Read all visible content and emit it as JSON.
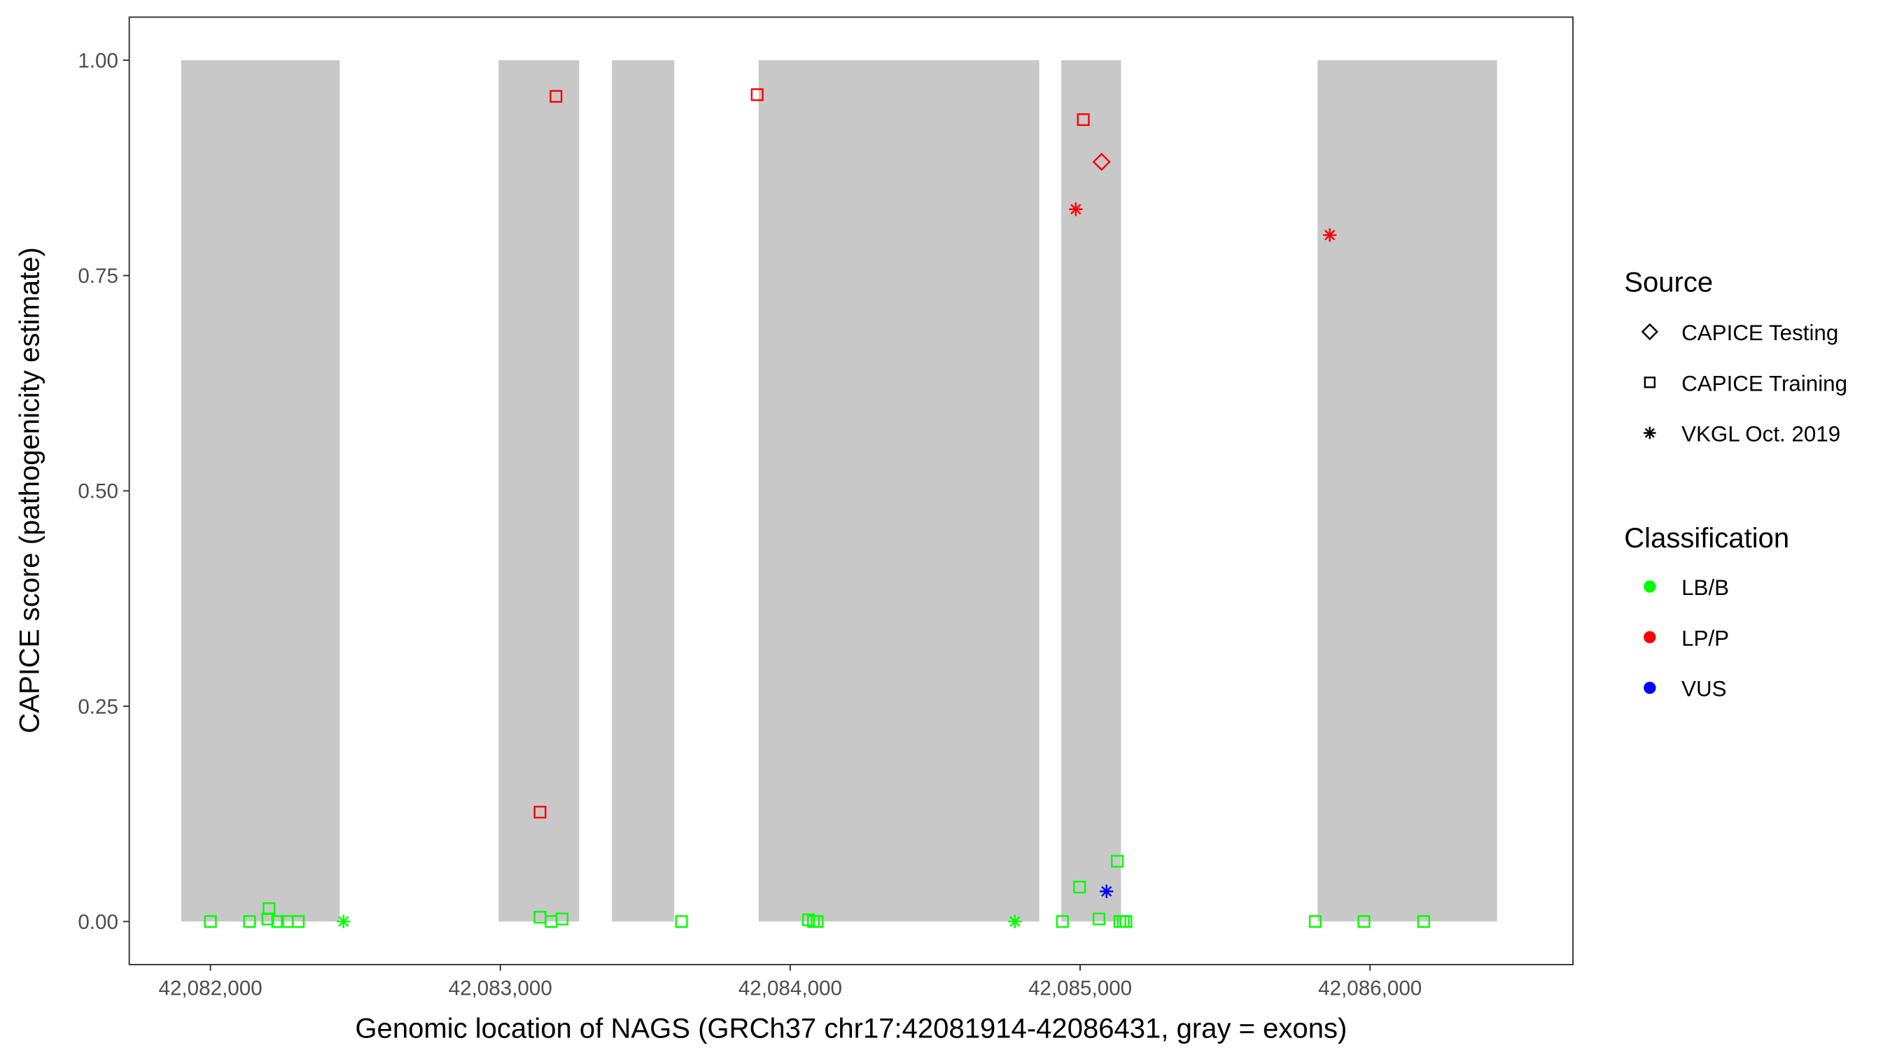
{
  "chart_data": {
    "type": "scatter",
    "title": "",
    "xlabel": "Genomic location of NAGS (GRCh37 chr17:42081914-42086431, gray = exons)",
    "ylabel": "CAPICE score (pathogenicity estimate)",
    "xlim": [
      42081720,
      42086700
    ],
    "ylim": [
      -0.05,
      1.05
    ],
    "x_ticks": [
      42082000,
      42083000,
      42084000,
      42085000,
      42086000
    ],
    "x_tick_labels": [
      "42,082,000",
      "42,083,000",
      "42,084,000",
      "42,085,000",
      "42,086,000"
    ],
    "y_ticks": [
      0,
      0.25,
      0.5,
      0.75,
      1.0
    ],
    "y_tick_labels": [
      "0.00",
      "0.25",
      "0.50",
      "0.75",
      "1.00"
    ],
    "grid": false,
    "exons": [
      [
        42081899,
        42082446
      ],
      [
        42082994,
        42083272
      ],
      [
        42083385,
        42083600
      ],
      [
        42083891,
        42084859
      ],
      [
        42084935,
        42085141
      ],
      [
        42085819,
        42086438
      ]
    ],
    "exon_color": "#c8c8c8",
    "legend": {
      "placement": "right",
      "source_title": "Source",
      "source_items": [
        {
          "label": "CAPICE Testing",
          "shape": "diamond"
        },
        {
          "label": "CAPICE Training",
          "shape": "square"
        },
        {
          "label": "VKGL Oct. 2019",
          "shape": "star"
        }
      ],
      "class_title": "Classification",
      "class_items": [
        {
          "label": "LB/B",
          "color": "#00ff00"
        },
        {
          "label": "LP/P",
          "color": "#ff0000"
        },
        {
          "label": "VUS",
          "color": "#0000ff"
        }
      ]
    },
    "points": [
      {
        "x": 42082000,
        "y": 0.0,
        "source": "square",
        "cls": "LB/B"
      },
      {
        "x": 42082135,
        "y": 0.0,
        "source": "square",
        "cls": "LB/B"
      },
      {
        "x": 42082198,
        "y": 0.003,
        "source": "square",
        "cls": "LB/B"
      },
      {
        "x": 42082202,
        "y": 0.015,
        "source": "square",
        "cls": "LB/B"
      },
      {
        "x": 42082232,
        "y": 0.0,
        "source": "square",
        "cls": "LB/B"
      },
      {
        "x": 42082265,
        "y": 0.0,
        "source": "square",
        "cls": "LB/B"
      },
      {
        "x": 42082303,
        "y": 0.0,
        "source": "square",
        "cls": "LB/B"
      },
      {
        "x": 42082459,
        "y": 0.0,
        "source": "star",
        "cls": "LB/B"
      },
      {
        "x": 42083137,
        "y": 0.005,
        "source": "square",
        "cls": "LB/B"
      },
      {
        "x": 42083175,
        "y": 0.0,
        "source": "square",
        "cls": "LB/B"
      },
      {
        "x": 42083213,
        "y": 0.003,
        "source": "square",
        "cls": "LB/B"
      },
      {
        "x": 42083625,
        "y": 0.0,
        "source": "square",
        "cls": "LB/B"
      },
      {
        "x": 42084063,
        "y": 0.002,
        "source": "square",
        "cls": "LB/B"
      },
      {
        "x": 42084080,
        "y": 0.0,
        "source": "square",
        "cls": "LB/B"
      },
      {
        "x": 42084093,
        "y": 0.0,
        "source": "square",
        "cls": "LB/B"
      },
      {
        "x": 42084775,
        "y": 0.0,
        "source": "star",
        "cls": "LB/B"
      },
      {
        "x": 42084939,
        "y": 0.0,
        "source": "square",
        "cls": "LB/B"
      },
      {
        "x": 42084998,
        "y": 0.04,
        "source": "square",
        "cls": "LB/B"
      },
      {
        "x": 42085065,
        "y": 0.003,
        "source": "square",
        "cls": "LB/B"
      },
      {
        "x": 42085128,
        "y": 0.07,
        "source": "square",
        "cls": "LB/B"
      },
      {
        "x": 42085137,
        "y": 0.0,
        "source": "square",
        "cls": "LB/B"
      },
      {
        "x": 42085149,
        "y": 0.0,
        "source": "square",
        "cls": "LB/B"
      },
      {
        "x": 42085158,
        "y": 0.0,
        "source": "square",
        "cls": "LB/B"
      },
      {
        "x": 42085811,
        "y": 0.0,
        "source": "square",
        "cls": "LB/B"
      },
      {
        "x": 42085979,
        "y": 0.0,
        "source": "square",
        "cls": "LB/B"
      },
      {
        "x": 42086185,
        "y": 0.0,
        "source": "square",
        "cls": "LB/B"
      },
      {
        "x": 42085091,
        "y": 0.035,
        "source": "star",
        "cls": "VUS"
      },
      {
        "x": 42083137,
        "y": 0.127,
        "source": "square",
        "cls": "LP/P"
      },
      {
        "x": 42083192,
        "y": 0.958,
        "source": "square",
        "cls": "LP/P"
      },
      {
        "x": 42083886,
        "y": 0.96,
        "source": "square",
        "cls": "LP/P"
      },
      {
        "x": 42085011,
        "y": 0.931,
        "source": "square",
        "cls": "LP/P"
      },
      {
        "x": 42085074,
        "y": 0.882,
        "source": "diamond",
        "cls": "LP/P"
      },
      {
        "x": 42084985,
        "y": 0.827,
        "source": "star",
        "cls": "LP/P"
      },
      {
        "x": 42085861,
        "y": 0.797,
        "source": "star",
        "cls": "LP/P"
      }
    ]
  }
}
